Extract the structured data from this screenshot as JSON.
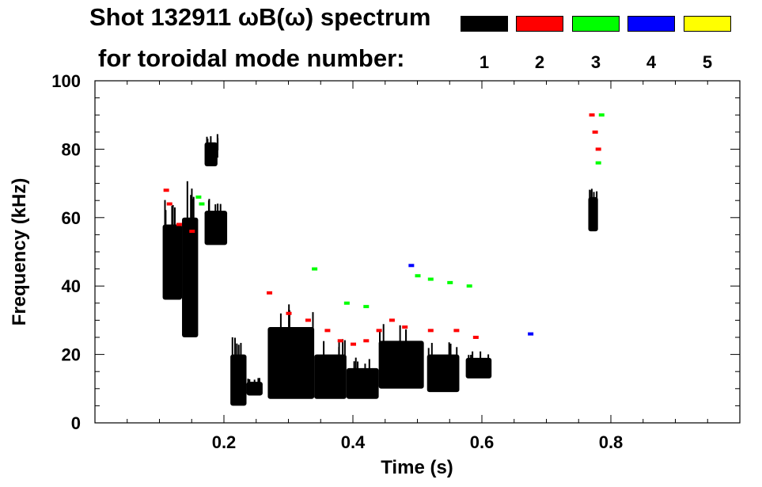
{
  "title_line1": "Shot 132911 ωB(ω) spectrum",
  "title_line2": "for toroidal mode number:",
  "legend": [
    {
      "label": "1",
      "color": "#000000"
    },
    {
      "label": "2",
      "color": "#ff0000"
    },
    {
      "label": "3",
      "color": "#00ff00"
    },
    {
      "label": "4",
      "color": "#0000ff"
    },
    {
      "label": "5",
      "color": "#ffff00"
    }
  ],
  "chart_data": {
    "type": "heatmap",
    "xlabel": "Time (s)",
    "ylabel": "Frequency (kHz)",
    "xlim": [
      0.0,
      1.0
    ],
    "ylim": [
      0,
      100
    ],
    "x_ticks": [
      0.2,
      0.4,
      0.6,
      0.8
    ],
    "x_tick_labels": [
      "0.2",
      "0.4",
      "0.6",
      "0.8"
    ],
    "y_ticks": [
      0,
      20,
      40,
      60,
      80,
      100
    ],
    "y_tick_labels": [
      "0",
      "20",
      "40",
      "60",
      "80",
      "100"
    ],
    "grid": false,
    "legend_position": "top-right",
    "series": [
      {
        "mode": 1,
        "regions": [
          {
            "t": [
              0.105,
              0.135
            ],
            "f": [
              36,
              58
            ]
          },
          {
            "t": [
              0.135,
              0.16
            ],
            "f": [
              25,
              60
            ]
          },
          {
            "t": [
              0.17,
              0.19
            ],
            "f": [
              75,
              82
            ]
          },
          {
            "t": [
              0.17,
              0.205
            ],
            "f": [
              52,
              62
            ]
          },
          {
            "t": [
              0.21,
              0.235
            ],
            "f": [
              5,
              20
            ]
          },
          {
            "t": [
              0.235,
              0.26
            ],
            "f": [
              8,
              12
            ]
          },
          {
            "t": [
              0.268,
              0.34
            ],
            "f": [
              7,
              28
            ]
          },
          {
            "t": [
              0.34,
              0.39
            ],
            "f": [
              7,
              20
            ]
          },
          {
            "t": [
              0.39,
              0.44
            ],
            "f": [
              7,
              16
            ]
          },
          {
            "t": [
              0.44,
              0.51
            ],
            "f": [
              10,
              24
            ]
          },
          {
            "t": [
              0.515,
              0.565
            ],
            "f": [
              9,
              20
            ]
          },
          {
            "t": [
              0.575,
              0.615
            ],
            "f": [
              13,
              19
            ]
          },
          {
            "t": [
              0.765,
              0.78
            ],
            "f": [
              56,
              66
            ]
          }
        ]
      },
      {
        "mode": 2,
        "points": [
          [
            0.27,
            38
          ],
          [
            0.3,
            32
          ],
          [
            0.33,
            30
          ],
          [
            0.36,
            27
          ],
          [
            0.38,
            24
          ],
          [
            0.4,
            23
          ],
          [
            0.42,
            24
          ],
          [
            0.44,
            27
          ],
          [
            0.46,
            30
          ],
          [
            0.48,
            28
          ],
          [
            0.52,
            27
          ],
          [
            0.56,
            27
          ],
          [
            0.59,
            25
          ],
          [
            0.11,
            68
          ],
          [
            0.115,
            64
          ],
          [
            0.13,
            58
          ],
          [
            0.15,
            56
          ],
          [
            0.77,
            90
          ],
          [
            0.775,
            85
          ],
          [
            0.78,
            80
          ]
        ]
      },
      {
        "mode": 3,
        "points": [
          [
            0.16,
            66
          ],
          [
            0.165,
            64
          ],
          [
            0.5,
            43
          ],
          [
            0.52,
            42
          ],
          [
            0.55,
            41
          ],
          [
            0.58,
            40
          ],
          [
            0.39,
            35
          ],
          [
            0.42,
            34
          ],
          [
            0.34,
            45
          ],
          [
            0.78,
            76
          ],
          [
            0.785,
            90
          ]
        ]
      },
      {
        "mode": 4,
        "points": [
          [
            0.49,
            46
          ],
          [
            0.675,
            26
          ]
        ]
      },
      {
        "mode": 5,
        "points": []
      }
    ]
  }
}
